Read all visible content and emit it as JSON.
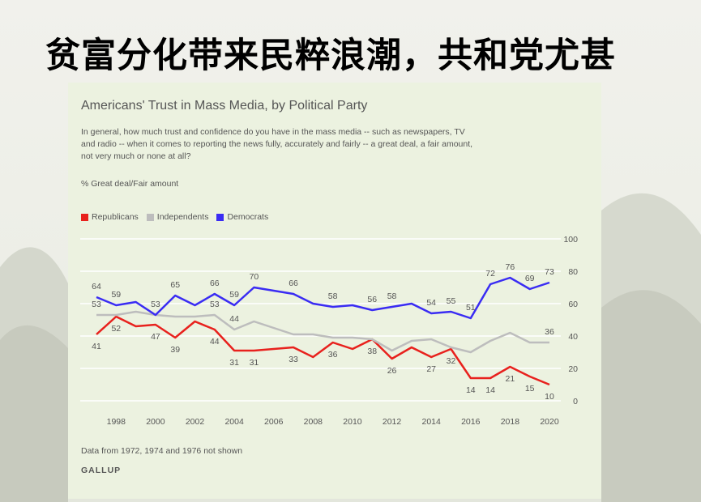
{
  "slide": {
    "title": "贫富分化带来民粹浪潮，共和党尤甚"
  },
  "chart_data": {
    "type": "line",
    "title": "Americans' Trust in Mass Media, by Political Party",
    "subtitle": "In general, how much trust and confidence do you have in the mass media -- such as newspapers, TV and radio -- when it comes to reporting the news fully, accurately and fairly -- a great deal, a fair amount, not very much or none at all?",
    "ylabel": "% Great deal/Fair amount",
    "note": "Data from 1972, 1974 and 1976 not shown",
    "source": "GALLUP",
    "legend_position": "top-left",
    "grid": true,
    "xlim": [
      1997,
      2020
    ],
    "ylim": [
      0,
      100
    ],
    "x_ticks": [
      1998,
      2000,
      2002,
      2004,
      2006,
      2008,
      2010,
      2012,
      2014,
      2016,
      2018,
      2020
    ],
    "y_ticks": [
      0,
      20,
      40,
      60,
      80,
      100
    ],
    "x": [
      1997,
      1998,
      1999,
      2000,
      2001,
      2002,
      2003,
      2004,
      2005,
      2007,
      2008,
      2009,
      2010,
      2011,
      2012,
      2013,
      2014,
      2015,
      2016,
      2017,
      2018,
      2019,
      2020
    ],
    "series": [
      {
        "name": "Republicans",
        "color": "#e8211d",
        "values": [
          41,
          52,
          46,
          47,
          39,
          49,
          44,
          31,
          31,
          33,
          27,
          36,
          32,
          38,
          26,
          33,
          27,
          32,
          14,
          14,
          21,
          15,
          10
        ],
        "labeled": [
          1997,
          1998,
          2000,
          2001,
          2003,
          2004,
          2005,
          2007,
          2009,
          2011,
          2012,
          2014,
          2015,
          2016,
          2017,
          2018,
          2019,
          2020
        ],
        "label_pos": "below"
      },
      {
        "name": "Independents",
        "color": "#bdbdbd",
        "values": [
          53,
          53,
          55,
          53,
          52,
          52,
          53,
          44,
          49,
          41,
          41,
          39,
          39,
          38,
          31,
          37,
          38,
          33,
          30,
          37,
          42,
          36,
          36
        ],
        "labeled": [
          1997,
          2003,
          2004,
          2020
        ],
        "label_pos": "above"
      },
      {
        "name": "Democrats",
        "color": "#3a2cf3",
        "values": [
          64,
          59,
          61,
          53,
          65,
          59,
          66,
          59,
          70,
          66,
          60,
          58,
          59,
          56,
          58,
          60,
          54,
          55,
          51,
          72,
          76,
          69,
          73
        ],
        "labeled": [
          1997,
          1998,
          2000,
          2001,
          2003,
          2004,
          2005,
          2007,
          2009,
          2011,
          2012,
          2014,
          2015,
          2016,
          2017,
          2018,
          2019,
          2020
        ],
        "label_pos": "above"
      }
    ]
  }
}
